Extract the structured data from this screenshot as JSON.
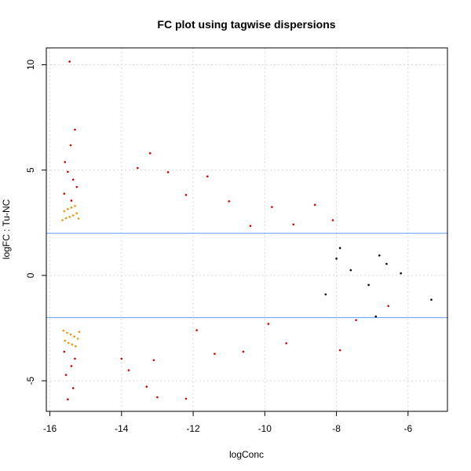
{
  "chart_data": {
    "type": "scatter",
    "title": "FC plot using tagwise dispersions",
    "xlabel": "logConc",
    "ylabel": "logFC : Tu-NC",
    "xlim": [
      -16.1,
      -4.9
    ],
    "ylim": [
      -6.45,
      10.8
    ],
    "x_ticks": [
      -16,
      -14,
      -12,
      -10,
      -8,
      -6
    ],
    "y_ticks": [
      -5,
      0,
      5,
      10
    ],
    "grid": true,
    "hlines": [
      2,
      -2
    ],
    "colors": {
      "not_de": "#000000",
      "de": "#d40000",
      "low_count": "#f39200",
      "threshold": "#6fa8ff",
      "grid": "#d9d9d9"
    },
    "series": [
      {
        "role": "low_count",
        "points": [
          [
            -15.65,
            2.62
          ],
          [
            -15.55,
            2.72
          ],
          [
            -15.45,
            2.78
          ],
          [
            -15.35,
            2.85
          ],
          [
            -15.25,
            2.95
          ],
          [
            -15.6,
            3.05
          ],
          [
            -15.5,
            3.15
          ],
          [
            -15.4,
            3.22
          ],
          [
            -15.3,
            3.3
          ],
          [
            -15.2,
            2.7
          ],
          [
            -15.62,
            -2.62
          ],
          [
            -15.52,
            -2.72
          ],
          [
            -15.42,
            -2.8
          ],
          [
            -15.32,
            -2.9
          ],
          [
            -15.22,
            -3.0
          ],
          [
            -15.58,
            -3.1
          ],
          [
            -15.48,
            -3.2
          ],
          [
            -15.38,
            -3.28
          ],
          [
            -15.28,
            -3.36
          ],
          [
            -15.18,
            -2.68
          ]
        ]
      },
      {
        "role": "de",
        "points": [
          [
            -15.45,
            10.15
          ],
          [
            -15.3,
            6.92
          ],
          [
            -15.42,
            6.18
          ],
          [
            -15.58,
            5.38
          ],
          [
            -15.5,
            4.92
          ],
          [
            -15.35,
            4.55
          ],
          [
            -15.25,
            4.2
          ],
          [
            -15.6,
            3.88
          ],
          [
            -15.4,
            3.55
          ],
          [
            -13.2,
            5.8
          ],
          [
            -13.55,
            5.1
          ],
          [
            -12.7,
            4.9
          ],
          [
            -11.6,
            4.7
          ],
          [
            -12.2,
            3.82
          ],
          [
            -11.0,
            3.52
          ],
          [
            -9.8,
            3.25
          ],
          [
            -8.6,
            3.35
          ],
          [
            -9.2,
            2.42
          ],
          [
            -8.1,
            2.62
          ],
          [
            -10.4,
            2.35
          ],
          [
            -15.5,
            -5.88
          ],
          [
            -15.35,
            -5.35
          ],
          [
            -15.55,
            -4.72
          ],
          [
            -15.4,
            -4.3
          ],
          [
            -15.3,
            -3.95
          ],
          [
            -15.6,
            -3.62
          ],
          [
            -13.0,
            -5.78
          ],
          [
            -13.3,
            -5.28
          ],
          [
            -12.2,
            -5.85
          ],
          [
            -13.8,
            -4.5
          ],
          [
            -13.1,
            -4.02
          ],
          [
            -11.4,
            -3.72
          ],
          [
            -10.6,
            -3.62
          ],
          [
            -9.4,
            -3.22
          ],
          [
            -7.9,
            -3.55
          ],
          [
            -7.45,
            -2.12
          ],
          [
            -6.55,
            -1.45
          ],
          [
            -9.9,
            -2.3
          ],
          [
            -11.9,
            -2.6
          ],
          [
            -14.0,
            -3.95
          ]
        ]
      },
      {
        "role": "not_de",
        "points": [
          [
            -5.35,
            -1.15
          ],
          [
            -6.6,
            0.55
          ],
          [
            -6.8,
            0.95
          ],
          [
            -7.1,
            -0.45
          ],
          [
            -7.6,
            0.25
          ],
          [
            -6.2,
            0.1
          ],
          [
            -8.0,
            0.8
          ],
          [
            -8.3,
            -0.9
          ],
          [
            -7.9,
            1.3
          ],
          [
            -6.9,
            -1.95
          ]
        ]
      }
    ]
  }
}
